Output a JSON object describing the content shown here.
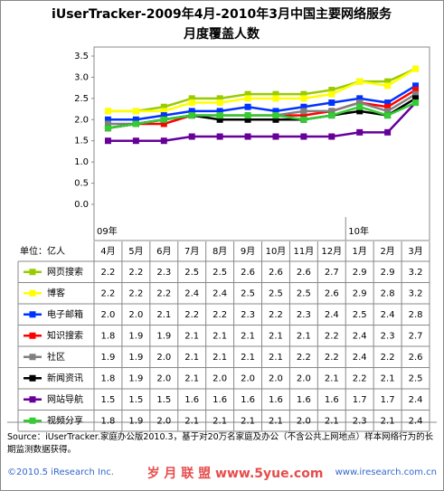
{
  "chart_data": {
    "type": "line",
    "title": "iUserTracker-2009年4月-2010年3月中国主要网络服务",
    "subtitle": "月度覆盖人数",
    "categories": [
      "4月",
      "5月",
      "6月",
      "7月",
      "8月",
      "9月",
      "10月",
      "11月",
      "12月",
      "1月",
      "2月",
      "3月"
    ],
    "year_labels": [
      {
        "index": 0,
        "label": "09年"
      },
      {
        "index": 9,
        "label": "10年"
      }
    ],
    "unit_label": "单位：亿人",
    "ylim": [
      0,
      3.5
    ],
    "yticks": [
      {
        "value": 0,
        "label": "0.0"
      },
      0.5,
      {
        "value": 1,
        "label": "1.0"
      },
      1.5,
      {
        "value": 2,
        "label": "2.0"
      },
      2.5,
      {
        "value": 3,
        "label": "3.0"
      },
      3.5
    ],
    "series": [
      {
        "name": "网页搜索",
        "color": "#99cc00",
        "values": [
          2.2,
          2.2,
          2.3,
          2.5,
          2.5,
          2.6,
          2.6,
          2.6,
          2.7,
          2.9,
          2.9,
          3.2
        ],
        "value_labels": [
          "2.2",
          "2.2",
          "2.3",
          "2.5",
          "2.5",
          "2.6",
          "2.6",
          "2.6",
          "2.7",
          "2.9",
          "2.9",
          "3.2"
        ]
      },
      {
        "name": "博客",
        "color": "#ffff00",
        "values": [
          2.2,
          2.2,
          2.2,
          2.4,
          2.4,
          2.5,
          2.5,
          2.5,
          2.6,
          2.9,
          2.8,
          3.2
        ],
        "value_labels": [
          "2.2",
          "2.2",
          "2.2",
          "2.4",
          "2.4",
          "2.5",
          "2.5",
          "2.5",
          "2.6",
          "2.9",
          "2.8",
          "3.2"
        ]
      },
      {
        "name": "电子邮箱",
        "color": "#0033ff",
        "values": [
          2,
          2,
          2.1,
          2.2,
          2.2,
          2.3,
          2.2,
          2.3,
          2.4,
          2.5,
          2.4,
          2.8
        ],
        "value_labels": [
          "2.0",
          "2.0",
          "2.1",
          "2.2",
          "2.2",
          "2.3",
          "2.2",
          "2.3",
          "2.4",
          "2.5",
          "2.4",
          "2.8"
        ]
      },
      {
        "name": "知识搜索",
        "color": "#ff0000",
        "values": [
          1.8,
          1.9,
          1.9,
          2.1,
          2.1,
          2.1,
          2.1,
          2.1,
          2.2,
          2.4,
          2.3,
          2.7
        ],
        "value_labels": [
          "1.8",
          "1.9",
          "1.9",
          "2.1",
          "2.1",
          "2.1",
          "2.1",
          "2.1",
          "2.2",
          "2.4",
          "2.3",
          "2.7"
        ]
      },
      {
        "name": "社区",
        "color": "#808080",
        "values": [
          1.9,
          1.9,
          2,
          2.1,
          2.1,
          2.1,
          2.1,
          2.2,
          2.2,
          2.4,
          2.2,
          2.6
        ],
        "value_labels": [
          "1.9",
          "1.9",
          "2.0",
          "2.1",
          "2.1",
          "2.1",
          "2.1",
          "2.2",
          "2.2",
          "2.4",
          "2.2",
          "2.6"
        ]
      },
      {
        "name": "新闻资讯",
        "color": "#000000",
        "values": [
          1.8,
          1.9,
          2,
          2.1,
          2,
          2,
          2,
          2,
          2.1,
          2.2,
          2.1,
          2.5
        ],
        "value_labels": [
          "1.8",
          "1.9",
          "2.0",
          "2.1",
          "2.0",
          "2.0",
          "2.0",
          "2.0",
          "2.1",
          "2.2",
          "2.1",
          "2.5"
        ]
      },
      {
        "name": "网站导航",
        "color": "#660099",
        "values": [
          1.5,
          1.5,
          1.5,
          1.6,
          1.6,
          1.6,
          1.6,
          1.6,
          1.6,
          1.7,
          1.7,
          2.4
        ],
        "value_labels": [
          "1.5",
          "1.5",
          "1.5",
          "1.6",
          "1.6",
          "1.6",
          "1.6",
          "1.6",
          "1.6",
          "1.7",
          "1.7",
          "2.4"
        ]
      },
      {
        "name": "视频分享",
        "color": "#33cc33",
        "values": [
          1.8,
          1.9,
          2,
          2.1,
          2.1,
          2.1,
          2.1,
          2,
          2.1,
          2.3,
          2.1,
          2.4
        ],
        "value_labels": [
          "1.8",
          "1.9",
          "2.0",
          "2.1",
          "2.1",
          "2.1",
          "2.1",
          "2.0",
          "2.1",
          "2.3",
          "2.1",
          "2.4"
        ]
      }
    ],
    "source": "Source：iUserTracker.家庭办公版2010.3，基于对20万名家庭及办公（不含公共上网地点）样本网络行为的长期监测数据获得。",
    "copyright": "©2010.5 iResearch Inc.",
    "watermark": "岁 月 联 盟 www.5yue.com",
    "website": "www.iresearch.com.cn"
  }
}
